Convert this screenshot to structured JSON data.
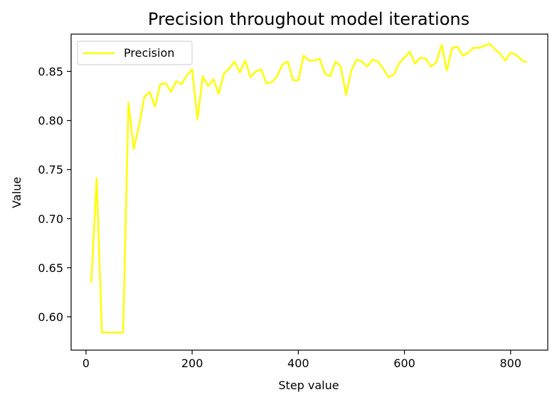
{
  "chart_data": {
    "type": "line",
    "title": "Precision throughout model iterations",
    "xlabel": "Step value",
    "ylabel": "Value",
    "xlim": [
      -28,
      870
    ],
    "ylim": [
      0.566,
      0.888
    ],
    "xticks": [
      0,
      200,
      400,
      600,
      800
    ],
    "xtick_labels": [
      "0",
      "200",
      "400",
      "600",
      "800"
    ],
    "yticks": [
      0.6,
      0.65,
      0.7,
      0.75,
      0.8,
      0.85
    ],
    "ytick_labels": [
      "0.60",
      "0.65",
      "0.70",
      "0.75",
      "0.80",
      "0.85"
    ],
    "grid": false,
    "legend": "top-left",
    "series": [
      {
        "name": "Precision",
        "color": "#ffff00",
        "x": [
          10,
          20,
          30,
          40,
          50,
          60,
          70,
          80,
          90,
          100,
          110,
          120,
          130,
          140,
          150,
          160,
          170,
          180,
          190,
          200,
          210,
          220,
          230,
          240,
          250,
          260,
          270,
          280,
          290,
          300,
          310,
          320,
          330,
          340,
          350,
          360,
          370,
          380,
          390,
          400,
          410,
          420,
          430,
          440,
          450,
          460,
          470,
          480,
          490,
          500,
          510,
          520,
          530,
          540,
          550,
          560,
          570,
          580,
          590,
          600,
          610,
          620,
          630,
          640,
          650,
          660,
          670,
          680,
          690,
          700,
          710,
          720,
          730,
          740,
          750,
          760,
          770,
          780,
          790,
          800,
          810,
          820,
          830
        ],
        "y": [
          0.635,
          0.741,
          0.584,
          0.584,
          0.584,
          0.584,
          0.584,
          0.818,
          0.771,
          0.795,
          0.824,
          0.829,
          0.814,
          0.837,
          0.838,
          0.829,
          0.84,
          0.837,
          0.846,
          0.852,
          0.801,
          0.845,
          0.835,
          0.842,
          0.827,
          0.848,
          0.853,
          0.86,
          0.849,
          0.861,
          0.844,
          0.85,
          0.852,
          0.838,
          0.839,
          0.845,
          0.857,
          0.86,
          0.841,
          0.841,
          0.866,
          0.861,
          0.861,
          0.863,
          0.848,
          0.845,
          0.86,
          0.855,
          0.826,
          0.851,
          0.862,
          0.86,
          0.855,
          0.862,
          0.86,
          0.853,
          0.844,
          0.847,
          0.858,
          0.864,
          0.87,
          0.858,
          0.864,
          0.863,
          0.855,
          0.859,
          0.877,
          0.851,
          0.874,
          0.875,
          0.866,
          0.869,
          0.874,
          0.874,
          0.876,
          0.878,
          0.873,
          0.868,
          0.861,
          0.869,
          0.867,
          0.862,
          0.859
        ]
      }
    ]
  }
}
